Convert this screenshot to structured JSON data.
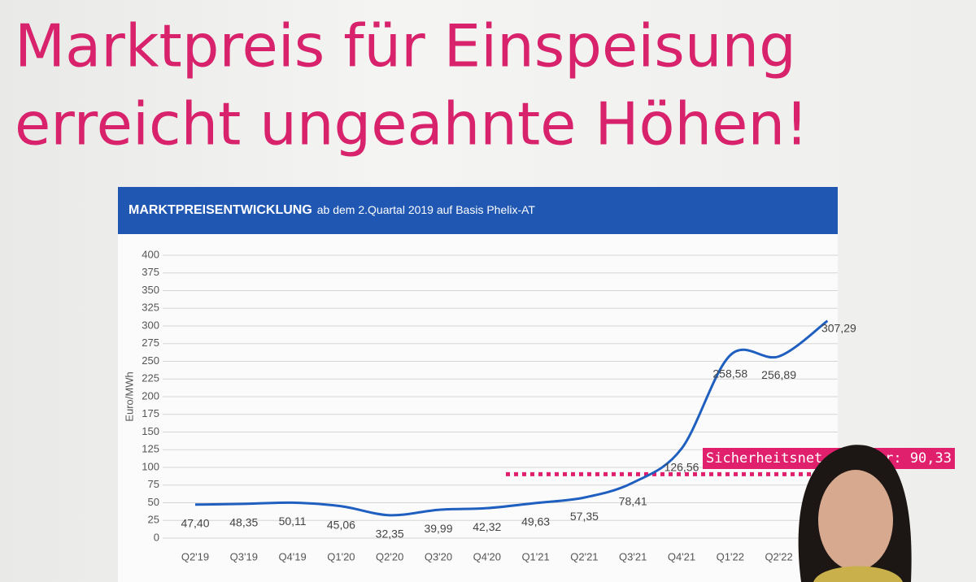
{
  "slide": {
    "title_lines": [
      "Marktpreis für Einspeisung",
      "erreicht ungeahnte Höhen!"
    ]
  },
  "chart_data": {
    "type": "line",
    "header_bold": "MARKTPREISENTWICKLUNG",
    "header_rest": "ab dem 2.Quartal 2019 auf Basis Phelix-AT",
    "y_label": "Euro/MWh",
    "categories": [
      "Q2'19",
      "Q3'19",
      "Q4'19",
      "Q1'20",
      "Q2'20",
      "Q3'20",
      "Q4'20",
      "Q1'21",
      "Q2'21",
      "Q3'21",
      "Q4'21",
      "Q1'22",
      "Q2'22",
      null
    ],
    "series": [
      {
        "name": null,
        "color": "#1f5fbf",
        "values": [
          47.4,
          48.35,
          50.11,
          45.06,
          32.35,
          39.99,
          42.32,
          49.63,
          57.35,
          78.41,
          126.56,
          258.58,
          256.89,
          307.29
        ],
        "value_labels": [
          "47,40",
          "48,35",
          "50,11",
          "45,06",
          "32,35",
          "39,99",
          "42,32",
          "49,63",
          "57,35",
          "78,41",
          "126,56",
          "258,58",
          "256,89",
          "307,29"
        ]
      }
    ],
    "ylim": [
      0,
      400
    ],
    "yticks": [
      0,
      25,
      50,
      75,
      100,
      125,
      150,
      175,
      200,
      225,
      250,
      275,
      300,
      325,
      350,
      375,
      400
    ],
    "grid": true,
    "threshold": {
      "value": 90.33,
      "color": "#e0206c",
      "label_parts": [
        "Sicherheitsnet",
        "er: 90,33"
      ]
    }
  }
}
